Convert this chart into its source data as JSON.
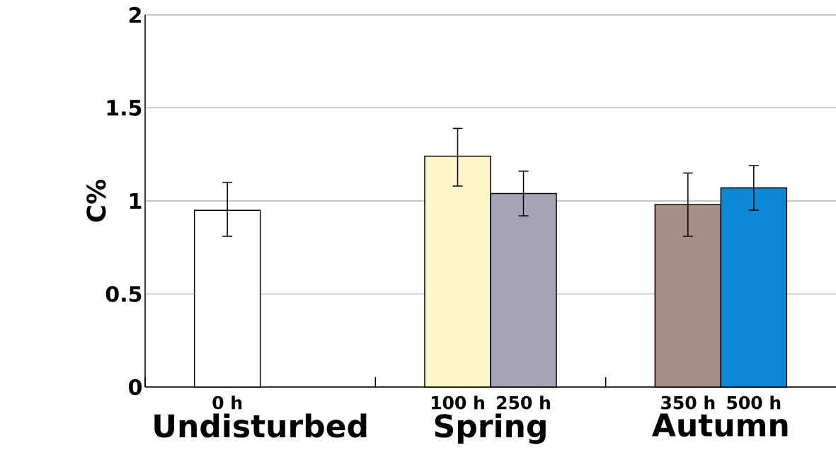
{
  "chart_data": {
    "type": "bar",
    "ylabel": "C%",
    "categories": [
      "Undisturbed",
      "Spring",
      "Autumn"
    ],
    "series": [
      {
        "name": "0 h",
        "color": "#ffffff",
        "values": [
          0.95,
          null,
          null
        ],
        "errors": [
          [
            0.81,
            1.1
          ],
          null,
          null
        ]
      },
      {
        "name": "100 h",
        "color": "#fdf5c8",
        "values": [
          null,
          1.24,
          null
        ],
        "errors": [
          null,
          [
            1.08,
            1.39
          ],
          null
        ]
      },
      {
        "name": "250 h",
        "color": "#a5a4b4",
        "values": [
          null,
          1.04,
          null
        ],
        "errors": [
          null,
          [
            0.92,
            1.16
          ],
          null
        ]
      },
      {
        "name": "350 h",
        "color": "#a88e84",
        "values": [
          null,
          null,
          0.98
        ],
        "errors": [
          null,
          null,
          [
            0.81,
            1.15
          ]
        ]
      },
      {
        "name": "500 h",
        "color": "#0a88d6",
        "values": [
          null,
          null,
          1.07
        ],
        "errors": [
          null,
          null,
          [
            0.95,
            1.19
          ]
        ]
      }
    ],
    "ylim": [
      0,
      2
    ],
    "yticks": [
      0,
      0.5,
      1,
      1.5,
      2
    ],
    "grid": "y"
  }
}
